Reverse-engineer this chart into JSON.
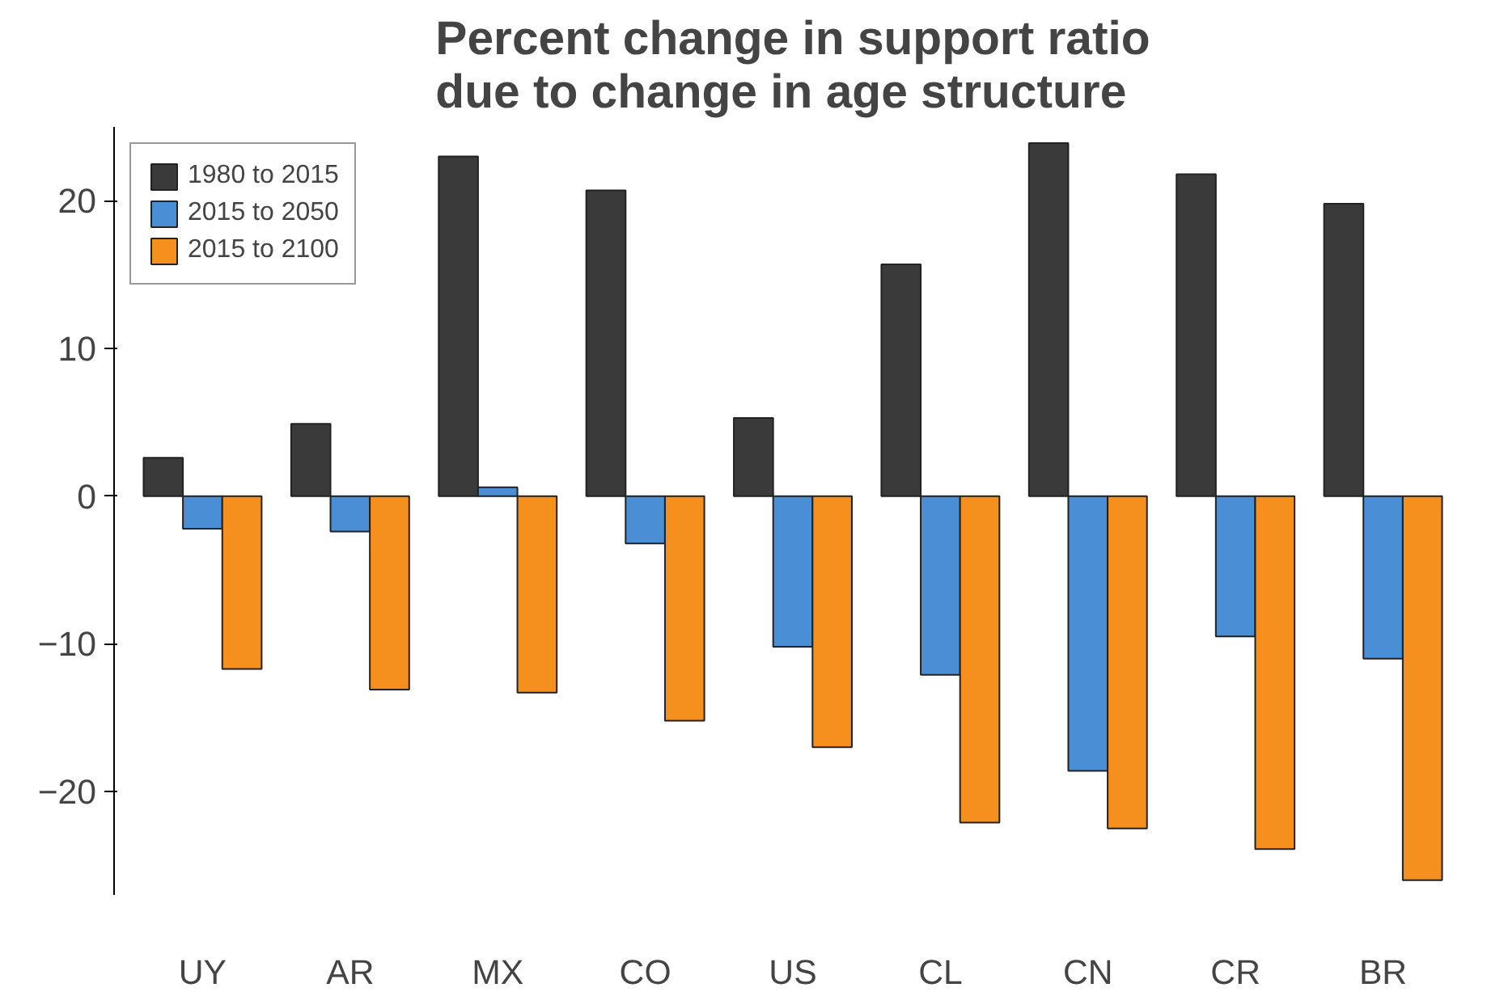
{
  "chart_data": {
    "type": "bar",
    "title": "Percent change in support ratio\ndue to change in age structure",
    "categories": [
      "UY",
      "AR",
      "MX",
      "CO",
      "US",
      "CL",
      "CN",
      "CR",
      "BR"
    ],
    "series": [
      {
        "name": "1980 to 2015",
        "color": "#3a3a3a",
        "values": [
          2.6,
          4.9,
          23.0,
          20.7,
          5.3,
          15.7,
          23.9,
          21.8,
          19.8
        ]
      },
      {
        "name": "2015 to 2050",
        "color": "#4a8fd6",
        "values": [
          -2.2,
          -2.4,
          0.6,
          -3.2,
          -10.2,
          -12.1,
          -18.6,
          -9.5,
          -11.0
        ]
      },
      {
        "name": "2015 to 2100",
        "color": "#f5901e",
        "values": [
          -11.7,
          -13.1,
          -13.3,
          -15.2,
          -17.0,
          -22.1,
          -22.5,
          -23.9,
          -26.0
        ]
      }
    ],
    "ylim": [
      -27,
      25
    ],
    "yticks": [
      -20,
      -10,
      0,
      10,
      20
    ],
    "grid": false,
    "legend": "top left"
  }
}
